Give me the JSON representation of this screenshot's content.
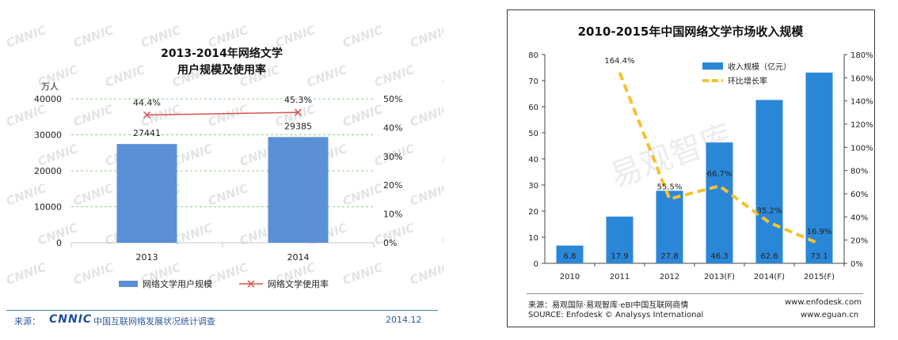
{
  "left_source": {
    "prefix": "来源：",
    "logo_text": "CNNIC",
    "org": "中国互联网络发展状况统计调查",
    "date": "2014.12"
  },
  "right_source": {
    "line1": "来源：易观国际·易观智库·eBI中国互联网商情",
    "line2": "SOURCE: Enfodesk © Analysys International",
    "site1": "www.enfodesk.com",
    "site2": "www.eguan.cn",
    "watermark": "易观智库"
  },
  "chart_data": [
    {
      "type": "bar",
      "title": "2013-2014年网络文学",
      "subtitle": "用户规模及使用率",
      "watermark": "CNNIC",
      "categories": [
        "2013",
        "2014"
      ],
      "y_unit": "万人",
      "ylim": [
        0,
        40000
      ],
      "yticks": [
        0,
        10000,
        20000,
        30000,
        40000
      ],
      "y2lim": [
        0,
        50
      ],
      "y2ticks": [
        "0%",
        "10%",
        "20%",
        "30%",
        "40%",
        "50%"
      ],
      "grid": true,
      "legend_position": "bottom",
      "series": [
        {
          "name": "网络文学用户规模",
          "kind": "bar",
          "axis": "left",
          "color": "#5b8fd6",
          "values": [
            27441,
            29385
          ],
          "labels": [
            "27441",
            "29385"
          ]
        },
        {
          "name": "网络文学使用率",
          "kind": "line",
          "axis": "right",
          "color": "#d9534f",
          "values": [
            44.4,
            45.3
          ],
          "labels": [
            "44.4%",
            "45.3%"
          ]
        }
      ]
    },
    {
      "type": "bar",
      "title": "2010-2015年中国网络文学市场收入规模",
      "categories": [
        "2010",
        "2011",
        "2012",
        "2013(F)",
        "2014(F)",
        "2015(F)"
      ],
      "ylim": [
        0,
        80
      ],
      "yticks": [
        0,
        10,
        20,
        30,
        40,
        50,
        60,
        70,
        80
      ],
      "y2lim": [
        0,
        180
      ],
      "y2ticks": [
        "0%",
        "20%",
        "40%",
        "60%",
        "80%",
        "100%",
        "120%",
        "140%",
        "160%",
        "180%"
      ],
      "grid": false,
      "legend_position": "top-right",
      "series": [
        {
          "name": "收入规模（亿元）",
          "kind": "bar",
          "axis": "left",
          "color": "#2a87d8",
          "values": [
            6.8,
            17.9,
            27.8,
            46.3,
            62.6,
            73.1
          ],
          "labels": [
            "6.8",
            "17.9",
            "27.8",
            "46.3",
            "62.6",
            "73.1"
          ]
        },
        {
          "name": "环比增长率",
          "kind": "line",
          "axis": "right",
          "color": "#f5c230",
          "values": [
            null,
            164.4,
            55.5,
            66.7,
            35.2,
            16.9
          ],
          "labels": [
            "",
            "164.4%",
            "55.5%",
            "66.7%",
            "35.2%",
            "16.9%"
          ]
        }
      ]
    }
  ]
}
